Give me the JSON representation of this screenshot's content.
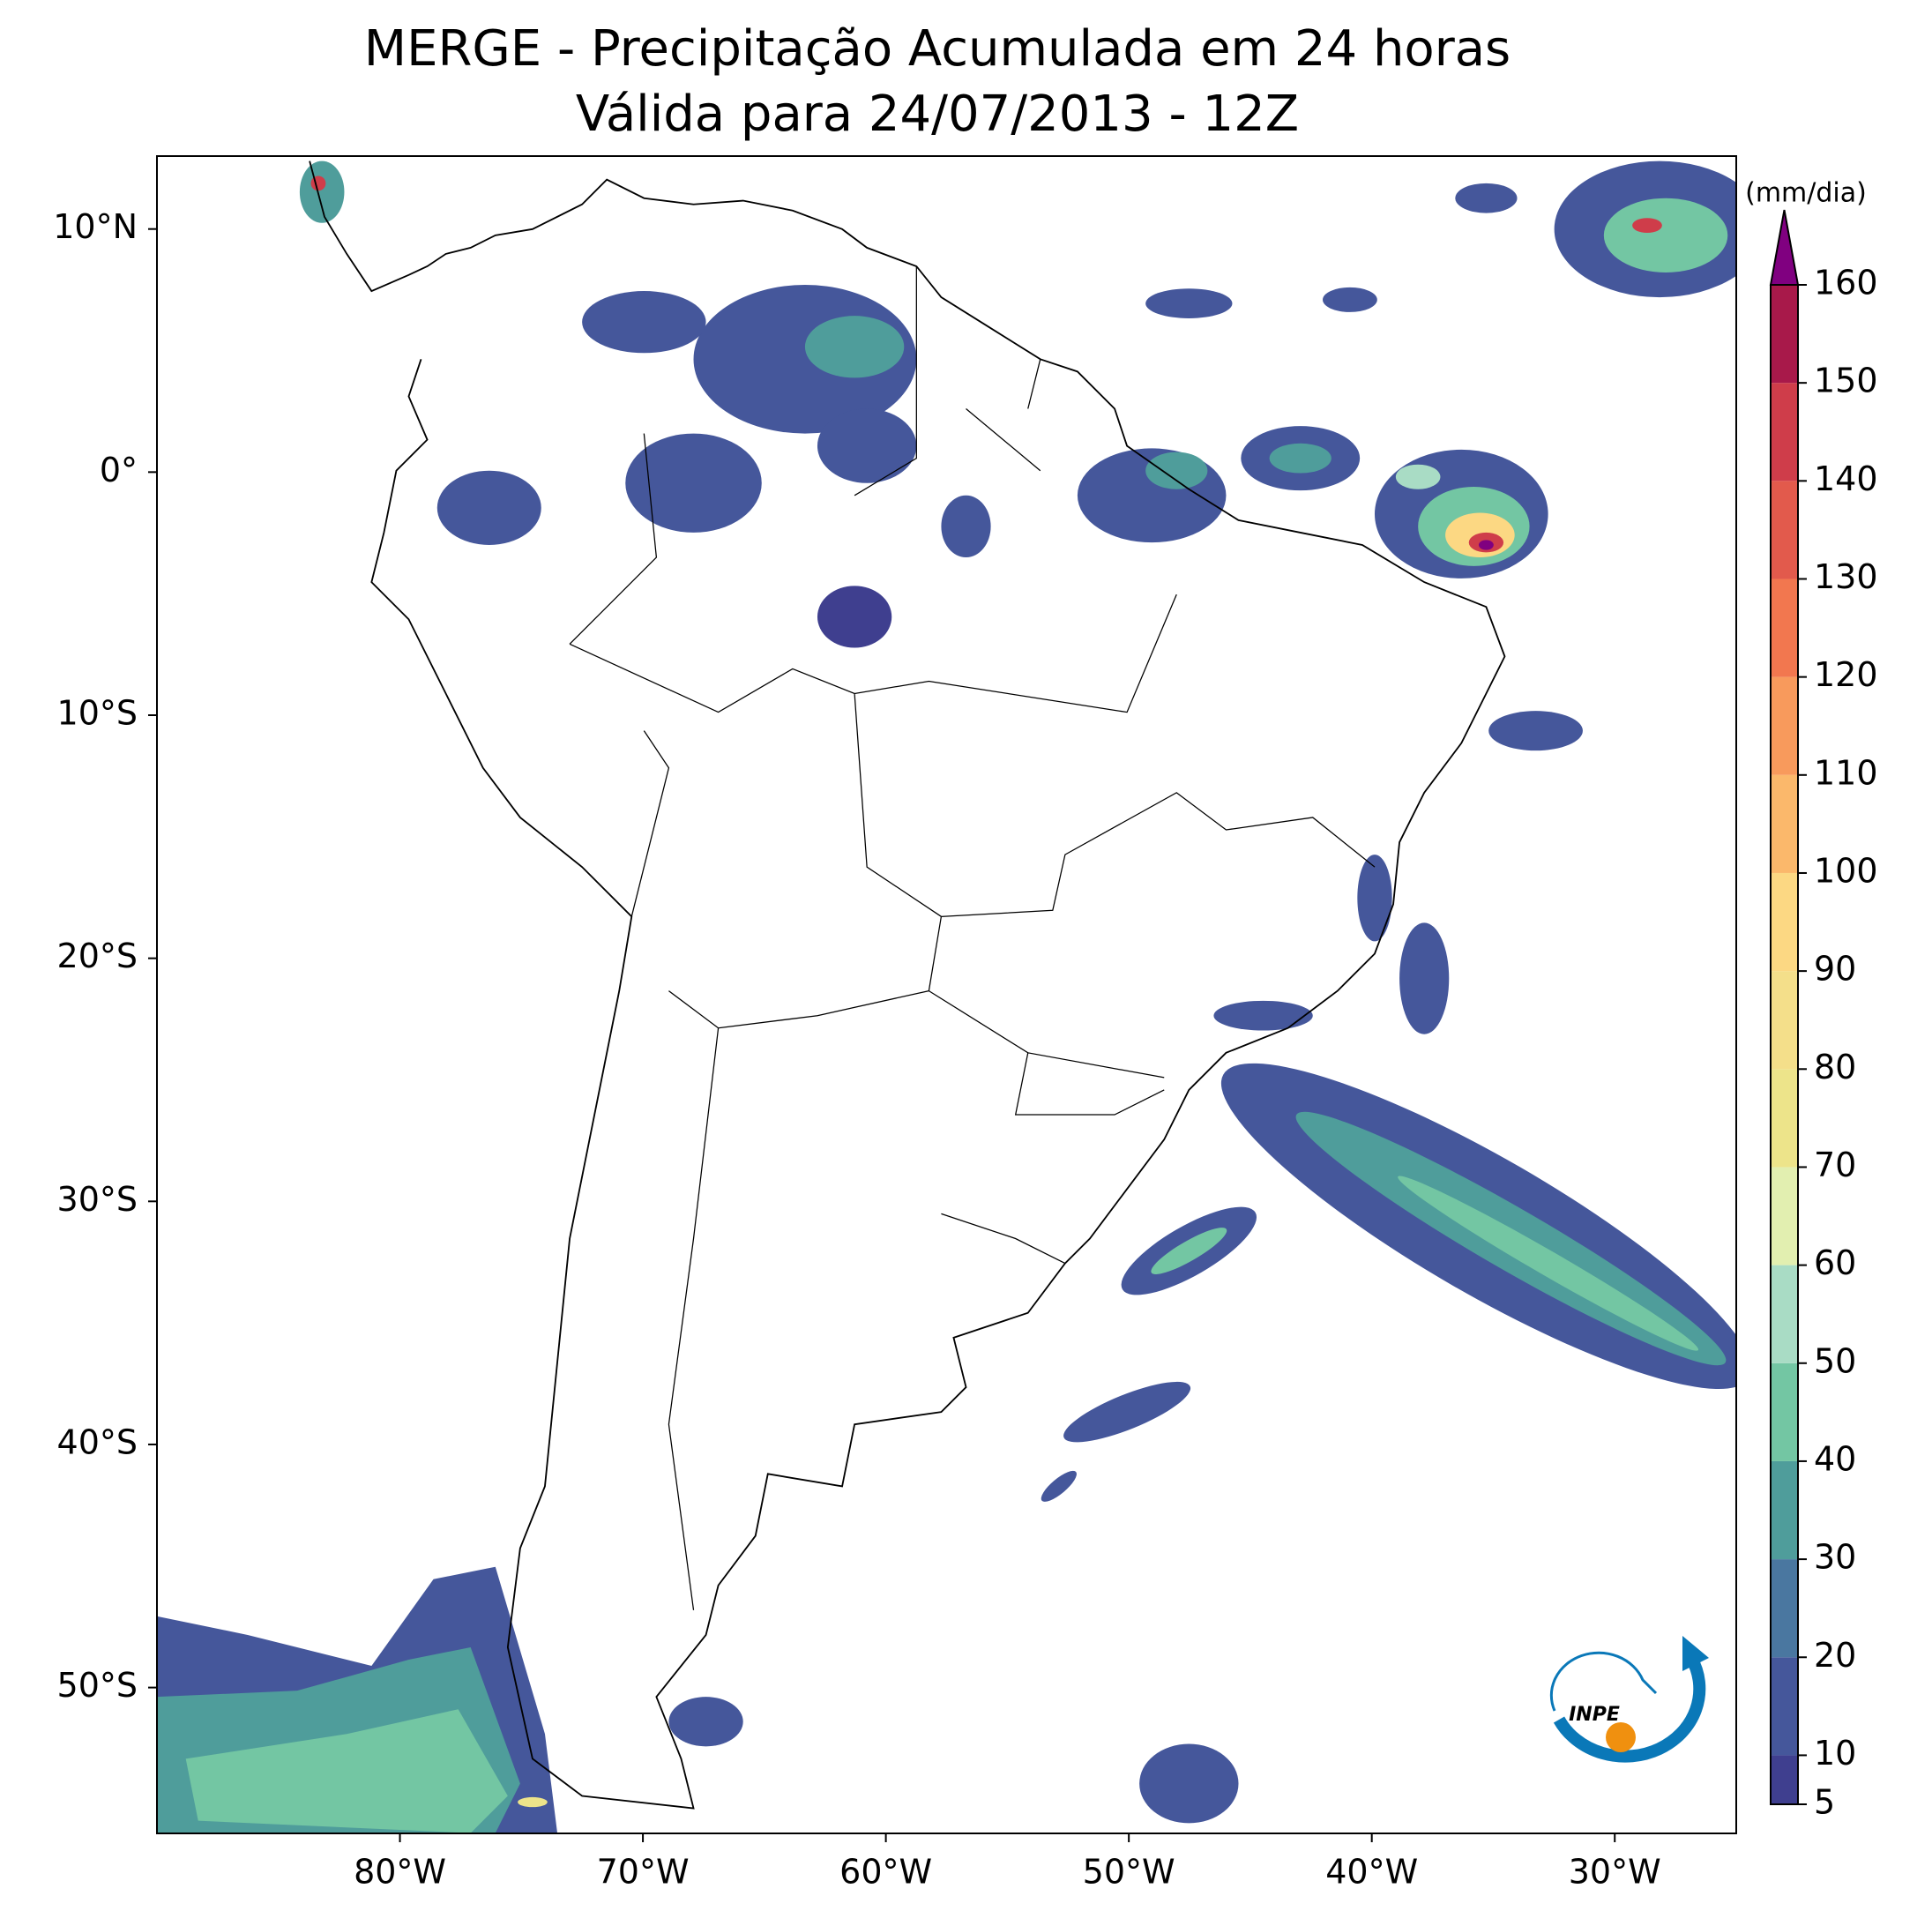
{
  "map": {
    "title": "MERGE - Precipitação Acumulada em 24 horas",
    "subtitle": "Válida para 24/07/2013 - 12Z",
    "lon_range": [
      -90,
      -25
    ],
    "lat_range": [
      -56,
      13
    ],
    "lon_ticks": [
      {
        "value": -80,
        "label": "80°W"
      },
      {
        "value": -70,
        "label": "70°W"
      },
      {
        "value": -60,
        "label": "60°W"
      },
      {
        "value": -50,
        "label": "50°W"
      },
      {
        "value": -40,
        "label": "40°W"
      },
      {
        "value": -30,
        "label": "30°W"
      }
    ],
    "lat_ticks": [
      {
        "value": 10,
        "label": "10°N"
      },
      {
        "value": 0,
        "label": "0°"
      },
      {
        "value": -10,
        "label": "10°S"
      },
      {
        "value": -20,
        "label": "20°S"
      },
      {
        "value": -30,
        "label": "30°S"
      },
      {
        "value": -40,
        "label": "40°S"
      },
      {
        "value": -50,
        "label": "50°S"
      }
    ],
    "colorbar": {
      "label": "(mm/dia)",
      "levels": [
        5,
        10,
        20,
        30,
        40,
        50,
        60,
        70,
        80,
        90,
        100,
        110,
        120,
        130,
        140,
        150,
        160
      ],
      "colors": [
        "#3f3f8f",
        "#45579b",
        "#4a77a0",
        "#4f9d9b",
        "#73c6a3",
        "#a9dcc5",
        "#e2efb0",
        "#ede48a",
        "#f4df8a",
        "#fcd883",
        "#fbb86b",
        "#f89a5c",
        "#f2774f",
        "#e25a4c",
        "#cf3d4a",
        "#a8194a"
      ],
      "over_color": "#800080"
    },
    "logo_text": "INPE"
  }
}
